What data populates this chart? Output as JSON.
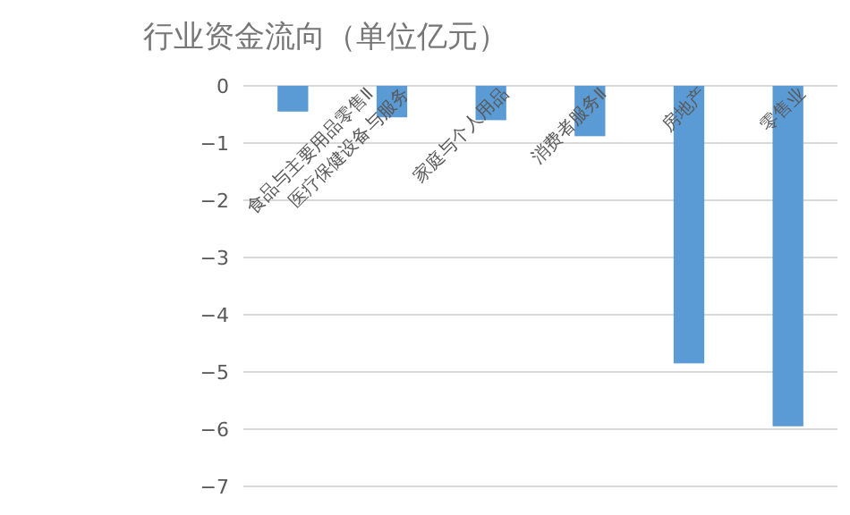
{
  "chart_data": {
    "type": "bar",
    "title": "行业资金流向（单位亿元）",
    "categories": [
      "食品与主要用品零售Ⅱ",
      "医疗保健设备与服务",
      "家庭与个人用品",
      "消费者服务Ⅱ",
      "房地产",
      "零售业"
    ],
    "values": [
      -0.45,
      -0.55,
      -0.6,
      -0.88,
      -4.85,
      -5.95
    ],
    "color": "#5b9bd5",
    "ylim": [
      -7,
      0
    ],
    "yticks": [
      0,
      -1,
      -2,
      -3,
      -4,
      -5,
      -6,
      -7
    ],
    "grid": "y"
  }
}
